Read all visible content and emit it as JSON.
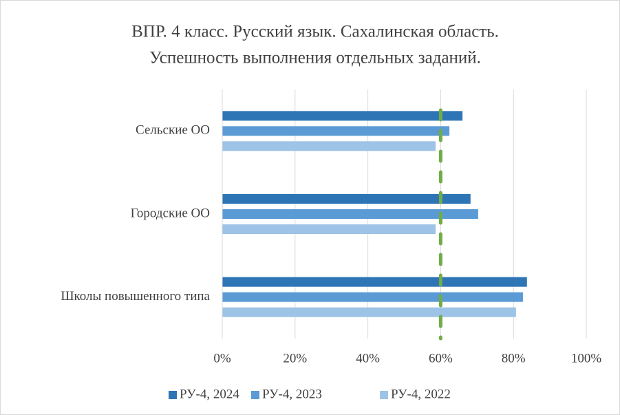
{
  "chart_data": {
    "type": "hbar",
    "title": [
      "ВПР. 4 класс. Русский язык. Сахалинская область.",
      "Успешность выполнения отдельных заданий."
    ],
    "categories": [
      "Сельские ОО",
      "Городские ОО",
      "Школы повышенного типа"
    ],
    "series": [
      {
        "name": "РУ-4, 2024",
        "color": "#2e75b6",
        "values": [
          66.0,
          68.2,
          83.7
        ]
      },
      {
        "name": "РУ-4, 2023",
        "color": "#5b9bd5",
        "values": [
          62.4,
          70.3,
          82.6
        ]
      },
      {
        "name": "РУ-4, 2022",
        "color": "#9dc3e6",
        "values": [
          58.6,
          58.6,
          80.7
        ]
      }
    ],
    "xlim": [
      0,
      100
    ],
    "xticks": [
      {
        "value": 0,
        "label": "0%"
      },
      {
        "value": 20,
        "label": "20%"
      },
      {
        "value": 40,
        "label": "40%"
      },
      {
        "value": 60,
        "label": "60%"
      },
      {
        "value": 80,
        "label": "80%"
      },
      {
        "value": 100,
        "label": "100%"
      }
    ],
    "grid": true,
    "reference_line": {
      "value": 60,
      "color": "#70ad47"
    },
    "legend": "bottom"
  }
}
